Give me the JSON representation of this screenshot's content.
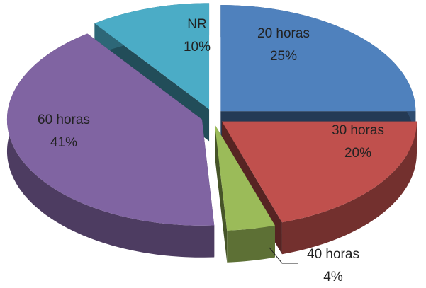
{
  "chart_data": {
    "type": "pie",
    "categories": [
      "20 horas",
      "30 horas",
      "40 horas",
      "60 horas",
      "NR"
    ],
    "values": [
      25,
      20,
      4,
      41,
      10
    ],
    "value_labels": [
      "25%",
      "20%",
      "4%",
      "41%",
      "10%"
    ],
    "colors": [
      "#4f81bd",
      "#c0504d",
      "#9bbb59",
      "#8064a2",
      "#4bacc6"
    ]
  }
}
